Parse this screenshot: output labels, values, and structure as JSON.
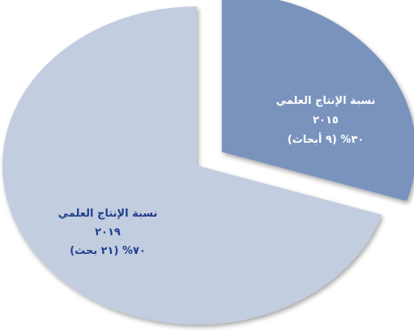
{
  "chart_data": {
    "type": "pie",
    "title": "",
    "slices": [
      {
        "value": 30,
        "count": 9,
        "label_lines": [
          "نسبة الإنتاج العلمي",
          "٢٠١٥",
          "٣٠% (٩ أبحاث)"
        ],
        "color": "#7a93bd",
        "text_color": "#ffffff",
        "exploded": true
      },
      {
        "value": 70,
        "count": 21,
        "label_lines": [
          "نسبة الإنتاج العلمي",
          "٢٠١٩",
          "٧٠% (٢١ بحث)"
        ],
        "color": "#c3cde0",
        "text_color": "#1f3f8a",
        "exploded": false
      }
    ],
    "legend": "none"
  }
}
